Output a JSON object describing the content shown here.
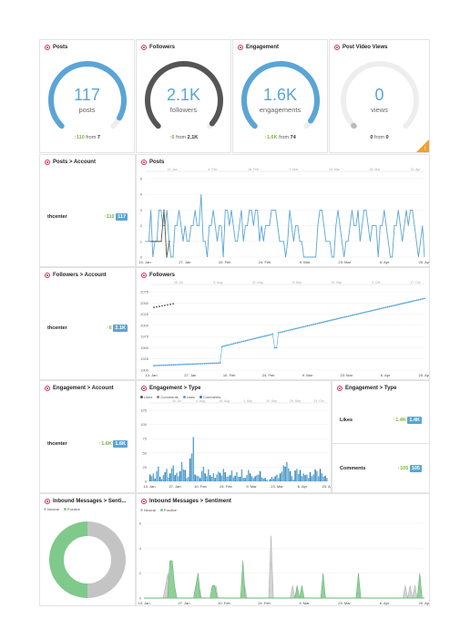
{
  "gauges": [
    {
      "title": "Posts",
      "value": "117",
      "label": "posts",
      "delta": "↑110",
      "from_label": "from",
      "from_value": "7",
      "fraction": 0.94,
      "color": "#5aa5d6"
    },
    {
      "title": "Followers",
      "value": "2.1K",
      "label": "followers",
      "delta": "↑6",
      "from_label": "from",
      "from_value": "2.1K",
      "fraction": 0.98,
      "color": "#555555"
    },
    {
      "title": "Engagement",
      "value": "1.6K",
      "label": "engagements",
      "delta": "↑1.6K",
      "from_label": "from",
      "from_value": "74",
      "fraction": 0.96,
      "color": "#5aa5d6"
    },
    {
      "title": "Post Video Views",
      "value": "0",
      "label": "views",
      "delta": "0",
      "from_label": "from",
      "from_value": "0",
      "fraction": 0.0,
      "color": "#5aa5d6"
    }
  ],
  "posts_account": {
    "title": "Posts > Account",
    "account": "thcenter",
    "delta": "↑110",
    "total": "117"
  },
  "followers_account": {
    "title": "Followers > Account",
    "account": "thcenter",
    "delta": "↑6",
    "total": "2.1K"
  },
  "engagement_account": {
    "title": "Engagement > Account",
    "account": "thcenter",
    "delta": "↑1.6K",
    "total": "1.6K"
  },
  "engagement_type_summary": {
    "title": "Engagement > Type",
    "rows": [
      {
        "label": "Likes",
        "delta": "↑1.4K",
        "total": "1.4K"
      },
      {
        "label": "Comments",
        "delta": "↑105",
        "total": "105"
      }
    ]
  },
  "colors": {
    "accent": "#5aa5d6",
    "dark": "#555555",
    "green": "#7cb342",
    "positive": "#7fc98a",
    "neutral": "#c4c4c4"
  },
  "chart_data": [
    {
      "id": "posts",
      "type": "line",
      "title": "Posts",
      "xticks": [
        "13. Jan",
        "27. Jan",
        "10. Feb",
        "24. Feb",
        "9. Mar",
        "23. Mar",
        "6. Apr",
        "20. Apr"
      ],
      "top_ticks": [
        "13. Jan",
        "4. Feb",
        "18. Feb",
        "1. Mar",
        "15. Mar",
        "29. Mar",
        "12. Apr"
      ],
      "yticks": [
        "0",
        "1",
        "2",
        "3",
        "4",
        "5"
      ],
      "ylim": [
        0,
        5
      ],
      "series": [
        {
          "values": [
            1,
            1,
            1,
            3,
            0,
            1,
            1,
            3,
            3,
            2,
            2,
            3,
            1,
            0,
            0,
            2,
            2,
            3,
            2,
            1,
            2,
            1,
            1,
            2,
            2,
            3,
            2,
            2,
            4,
            1,
            1,
            0,
            2,
            2,
            3,
            2,
            1,
            2,
            2,
            0,
            3,
            3,
            2,
            3,
            2,
            1,
            1,
            2,
            3,
            1,
            2,
            2,
            3,
            3,
            2,
            3,
            3,
            1,
            2,
            1,
            2,
            2,
            2,
            3,
            3,
            3,
            2,
            1,
            1,
            1,
            0,
            1,
            3,
            2,
            1,
            2,
            2,
            1,
            1,
            0,
            0,
            0,
            0,
            0,
            0,
            0,
            2,
            3,
            3,
            2,
            1,
            1,
            1,
            0,
            0,
            2,
            3,
            2,
            1,
            0,
            1,
            1,
            2,
            3,
            2,
            2,
            3,
            1,
            2,
            3,
            3,
            2,
            1,
            2,
            2,
            2,
            0,
            2,
            2,
            3,
            2,
            1,
            0,
            0,
            2,
            2,
            3,
            2,
            1,
            2,
            3,
            2,
            3,
            3,
            2,
            1,
            0,
            1,
            2,
            0
          ]
        },
        {
          "values": [
            1,
            1,
            1,
            1,
            1,
            3,
            0,
            1
          ]
        }
      ]
    },
    {
      "id": "followers",
      "type": "line",
      "title": "Followers",
      "xticks": [
        "13. Jan",
        "27. Jan",
        "10. Feb",
        "24. Feb",
        "9. Mar",
        "23. Mar",
        "6. Apr",
        "20. Apr"
      ],
      "top_ticks": [
        "25. Jul",
        "8. Aug",
        "22. Aug",
        "5. Sep",
        "19. Sep",
        "3. Oct",
        "17. Oct"
      ],
      "yticks": [
        "1900",
        "1925",
        "1950",
        "1975",
        "2000",
        "2025",
        "2050",
        "2075"
      ],
      "ylim": [
        1900,
        2075
      ],
      "series": [
        {
          "start": 1910,
          "end": 2060
        },
        {
          "start": 2040,
          "end": 2048
        }
      ]
    },
    {
      "id": "engagement_type",
      "type": "bar",
      "title": "Engagement > Type",
      "legend": [
        "Likes",
        "Comments",
        "Likes",
        "Comments"
      ],
      "xticks": [
        "13. Jan",
        "27. Jan",
        "10. Feb",
        "24. Feb",
        "9. Mar",
        "23. Mar",
        "6. Apr",
        "20. Apr"
      ],
      "top_ticks": [
        "25. Jul",
        "4. Aug",
        "18. Aug",
        "1. Sep",
        "15. Sep",
        "29. Sep",
        "13. Oct"
      ],
      "yticks": [
        "0",
        "25",
        "50",
        "75",
        "100",
        "125"
      ],
      "ylim": [
        0,
        125
      ],
      "values": [
        12,
        9,
        14,
        5,
        18,
        26,
        8,
        4,
        11,
        16,
        22,
        7,
        14,
        23,
        28,
        11,
        15,
        9,
        18,
        34,
        21,
        20,
        6,
        8,
        40,
        49,
        78,
        12,
        10,
        9,
        6,
        18,
        26,
        14,
        9,
        21,
        11,
        8,
        14,
        6,
        12,
        17,
        15,
        10,
        22,
        16,
        8,
        9,
        11,
        19,
        7,
        10,
        16,
        8,
        8,
        21,
        6,
        6,
        11,
        20,
        14,
        9,
        6,
        9,
        11,
        12,
        18,
        7,
        5,
        6,
        3,
        1,
        4,
        8,
        5,
        9,
        12,
        6,
        14,
        17,
        28,
        26,
        34,
        23,
        18,
        9,
        3,
        19,
        22,
        13,
        20,
        9,
        14,
        11,
        12,
        6,
        16,
        9,
        12,
        21,
        18,
        9,
        22,
        14,
        8,
        10,
        6
      ]
    },
    {
      "id": "sentiment_pie",
      "type": "pie",
      "title": "Inbound Messages > Senti...",
      "legend": [
        "Neutral",
        "Positive"
      ],
      "slices": [
        {
          "name": "Neutral",
          "value": 50
        },
        {
          "name": "Positive",
          "value": 50
        }
      ]
    },
    {
      "id": "sentiment_area",
      "type": "area",
      "title": "Inbound Messages > Sentiment",
      "legend": [
        "Neutral",
        "Positive"
      ],
      "xticks": [
        "13. Jan",
        "27. Jan",
        "10. Feb",
        "24. Feb",
        "9. Mar",
        "23. Mar",
        "6. Apr",
        "20. Apr"
      ],
      "yticks": [
        "0",
        "2",
        "4",
        "6"
      ],
      "ylim": [
        0,
        6
      ],
      "neutral": [
        0,
        0,
        0,
        0,
        0,
        0,
        0,
        0,
        0,
        1,
        2,
        0,
        0,
        0,
        0,
        0,
        0,
        0,
        0,
        0,
        0,
        0,
        1,
        1,
        0,
        0,
        0,
        0,
        0,
        0,
        1,
        0,
        0,
        0,
        0,
        0,
        0,
        0,
        0,
        0,
        0,
        0,
        1,
        0,
        0,
        0,
        0,
        0,
        0,
        0,
        0,
        0,
        0,
        5,
        0,
        0,
        0,
        0,
        0,
        0,
        0,
        0,
        1,
        0,
        0,
        0,
        0,
        0,
        0,
        0,
        0,
        0,
        0,
        0,
        0,
        0,
        0,
        0,
        0,
        0,
        0,
        0,
        0,
        0,
        0,
        0,
        0,
        0,
        0,
        0,
        0,
        0,
        0,
        0,
        0,
        0,
        0,
        0,
        0,
        0,
        0,
        0,
        0,
        0,
        0,
        0,
        0,
        0,
        0,
        1,
        0,
        1,
        0,
        1,
        0,
        0,
        0,
        0
      ],
      "positive": [
        0,
        0,
        0,
        0,
        0,
        0,
        0,
        0,
        0,
        0,
        0,
        3,
        3,
        1,
        0,
        0,
        0,
        0,
        0,
        0,
        0,
        0,
        1,
        2,
        0,
        0,
        0,
        0,
        0,
        1,
        1,
        0,
        0,
        0,
        0,
        0,
        0,
        0,
        0,
        0,
        0,
        0,
        3,
        0,
        0,
        0,
        0,
        0,
        0,
        0,
        0,
        0,
        0,
        0,
        0,
        0,
        0,
        0,
        0,
        0,
        0,
        0,
        0,
        0,
        0,
        1,
        0,
        1,
        0,
        0,
        0,
        0,
        0,
        0,
        0,
        0,
        2,
        0,
        0,
        0,
        0,
        0,
        0,
        0,
        0,
        0,
        0,
        0,
        0,
        0,
        0,
        2,
        0,
        0,
        0,
        0,
        0,
        0,
        0,
        0,
        0,
        0,
        0,
        0,
        0,
        0,
        0,
        0,
        0,
        0,
        0,
        0,
        0,
        0,
        0,
        0,
        0,
        2,
        0,
        0
      ]
    }
  ]
}
